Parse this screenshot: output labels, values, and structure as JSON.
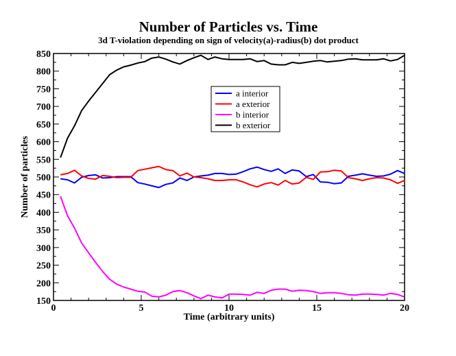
{
  "chart_data": {
    "type": "line",
    "title": "Number of Particles  vs. Time",
    "subtitle": "3d T-violation depending on sign of velocity(a)-radius(b) dot product",
    "xlabel": "Time (arbitrary units)",
    "ylabel": "Number of particles",
    "xlim": [
      0,
      20
    ],
    "ylim": [
      150,
      850
    ],
    "xticks": [
      0,
      5,
      10,
      15,
      20
    ],
    "yticks": [
      150,
      200,
      250,
      300,
      350,
      400,
      450,
      500,
      550,
      600,
      650,
      700,
      750,
      800,
      850
    ],
    "legend_position": "upper-center",
    "series": [
      {
        "name": "a interior",
        "color": "#0000ff",
        "x": [
          0.4,
          0.8,
          1.2,
          1.6,
          2.0,
          2.4,
          2.8,
          3.2,
          3.6,
          4.0,
          4.4,
          4.8,
          5.2,
          5.6,
          6.0,
          6.4,
          6.8,
          7.2,
          7.6,
          8.0,
          8.4,
          8.8,
          9.2,
          9.6,
          10.0,
          10.4,
          10.8,
          11.2,
          11.6,
          12.0,
          12.4,
          12.8,
          13.2,
          13.6,
          14.0,
          14.4,
          14.8,
          15.2,
          15.6,
          16.0,
          16.4,
          16.8,
          17.2,
          17.6,
          18.0,
          18.4,
          18.8,
          19.2,
          19.6,
          20.0
        ],
        "values": [
          495,
          492,
          483,
          499,
          504,
          506,
          497,
          498,
          501,
          501,
          501,
          484,
          480,
          475,
          470,
          479,
          483,
          497,
          490,
          500,
          503,
          505,
          510,
          510,
          507,
          508,
          515,
          523,
          528,
          521,
          516,
          523,
          510,
          520,
          517,
          501,
          507,
          486,
          485,
          481,
          483,
          502,
          505,
          509,
          505,
          502,
          503,
          508,
          518,
          510
        ]
      },
      {
        "name": "a exterior",
        "color": "#ff0000",
        "x": [
          0.4,
          0.8,
          1.2,
          1.6,
          2.0,
          2.4,
          2.8,
          3.2,
          3.6,
          4.0,
          4.4,
          4.8,
          5.2,
          5.6,
          6.0,
          6.4,
          6.8,
          7.2,
          7.6,
          8.0,
          8.4,
          8.8,
          9.2,
          9.6,
          10.0,
          10.4,
          10.8,
          11.2,
          11.6,
          12.0,
          12.4,
          12.8,
          13.2,
          13.6,
          14.0,
          14.4,
          14.8,
          15.2,
          15.6,
          16.0,
          16.4,
          16.8,
          17.2,
          17.6,
          18.0,
          18.4,
          18.8,
          19.2,
          19.6,
          20.0
        ],
        "values": [
          506,
          510,
          519,
          503,
          496,
          494,
          504,
          502,
          498,
          499,
          499,
          518,
          522,
          526,
          530,
          521,
          518,
          503,
          511,
          500,
          498,
          495,
          490,
          490,
          492,
          492,
          486,
          478,
          472,
          480,
          484,
          477,
          490,
          480,
          483,
          499,
          493,
          514,
          515,
          519,
          517,
          498,
          495,
          490,
          495,
          498,
          497,
          492,
          482,
          490
        ]
      },
      {
        "name": "b interior",
        "color": "#ff00ff",
        "x": [
          0.4,
          0.8,
          1.2,
          1.6,
          2.0,
          2.4,
          2.8,
          3.2,
          3.6,
          4.0,
          4.4,
          4.8,
          5.2,
          5.6,
          6.0,
          6.4,
          6.8,
          7.2,
          7.6,
          8.0,
          8.4,
          8.8,
          9.2,
          9.6,
          10.0,
          10.4,
          10.8,
          11.2,
          11.6,
          12.0,
          12.4,
          12.8,
          13.2,
          13.6,
          14.0,
          14.4,
          14.8,
          15.2,
          15.6,
          16.0,
          16.4,
          16.8,
          17.2,
          17.6,
          18.0,
          18.4,
          18.8,
          19.2,
          19.6,
          20.0
        ],
        "values": [
          445,
          390,
          355,
          313,
          285,
          258,
          232,
          210,
          196,
          188,
          182,
          176,
          174,
          162,
          160,
          165,
          175,
          178,
          172,
          163,
          155,
          165,
          160,
          157,
          168,
          168,
          167,
          165,
          173,
          170,
          179,
          182,
          182,
          176,
          179,
          178,
          175,
          170,
          172,
          172,
          170,
          166,
          165,
          168,
          168,
          167,
          165,
          170,
          167,
          160
        ]
      },
      {
        "name": "b exterior",
        "color": "#000000",
        "x": [
          0.4,
          0.8,
          1.2,
          1.6,
          2.0,
          2.4,
          2.8,
          3.2,
          3.6,
          4.0,
          4.4,
          4.8,
          5.2,
          5.6,
          6.0,
          6.4,
          6.8,
          7.2,
          7.6,
          8.0,
          8.4,
          8.8,
          9.2,
          9.6,
          10.0,
          10.4,
          10.8,
          11.2,
          11.6,
          12.0,
          12.4,
          12.8,
          13.2,
          13.6,
          14.0,
          14.4,
          14.8,
          15.2,
          15.6,
          16.0,
          16.4,
          16.8,
          17.2,
          17.6,
          18.0,
          18.4,
          18.8,
          19.2,
          19.6,
          20.0
        ],
        "values": [
          555,
          610,
          645,
          688,
          715,
          740,
          765,
          790,
          803,
          812,
          817,
          823,
          827,
          837,
          840,
          834,
          826,
          820,
          830,
          838,
          845,
          833,
          840,
          835,
          833,
          833,
          833,
          835,
          827,
          830,
          820,
          818,
          818,
          825,
          822,
          825,
          828,
          830,
          826,
          828,
          830,
          834,
          835,
          832,
          832,
          832,
          835,
          829,
          833,
          845
        ]
      }
    ]
  }
}
